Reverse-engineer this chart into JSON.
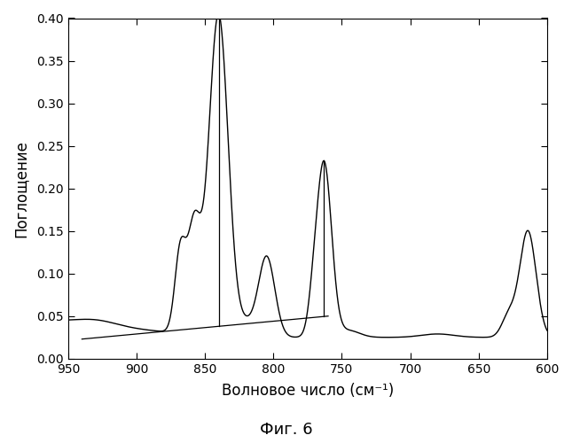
{
  "title": "Фиг. 6",
  "xlabel": "Волновое число (см⁻¹)",
  "ylabel": "Поглощение",
  "xlim": [
    950,
    600
  ],
  "ylim": [
    0.0,
    0.4
  ],
  "xticks": [
    950,
    900,
    850,
    800,
    750,
    700,
    650,
    600
  ],
  "yticks": [
    0.0,
    0.05,
    0.1,
    0.15,
    0.2,
    0.25,
    0.3,
    0.35,
    0.4
  ],
  "line_color": "#000000",
  "background_color": "#ffffff"
}
